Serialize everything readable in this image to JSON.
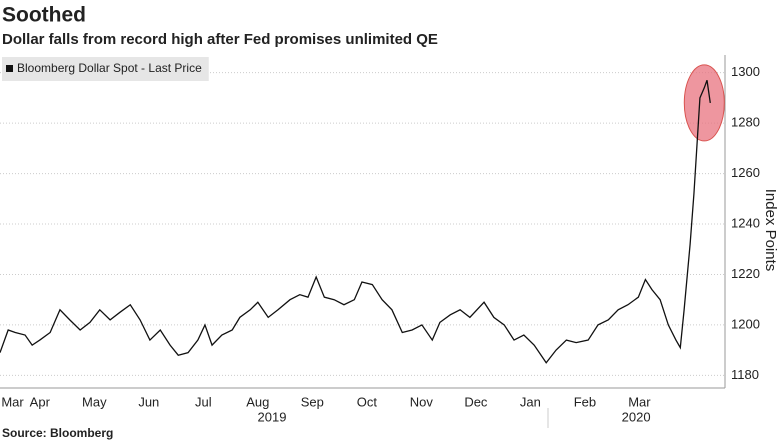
{
  "chart_data": {
    "type": "line",
    "title": "Soothed",
    "subtitle": "Dollar falls from record high after Fed promises unlimited QE",
    "y_axis_label": "Index Points",
    "source": "Source: Bloomberg",
    "legend": "top-left",
    "grid": true,
    "xlim": [
      0.77,
      14.07
    ],
    "xticks": [
      {
        "value": 1.0,
        "label": "Mar"
      },
      {
        "value": 1.5,
        "label": "Apr"
      },
      {
        "value": 2.5,
        "label": "May"
      },
      {
        "value": 3.5,
        "label": "Jun"
      },
      {
        "value": 4.5,
        "label": "Jul"
      },
      {
        "value": 5.5,
        "label": "Aug"
      },
      {
        "value": 6.5,
        "label": "Sep"
      },
      {
        "value": 7.5,
        "label": "Oct"
      },
      {
        "value": 8.5,
        "label": "Nov"
      },
      {
        "value": 9.5,
        "label": "Dec"
      },
      {
        "value": 10.5,
        "label": "Jan"
      },
      {
        "value": 11.5,
        "label": "Feb"
      },
      {
        "value": 12.5,
        "label": "Mar"
      }
    ],
    "year_labels": [
      {
        "value": 5.76,
        "label": "2019"
      },
      {
        "value": 12.44,
        "label": "2020"
      }
    ],
    "ylim": [
      1175,
      1307
    ],
    "yticks": [
      1180,
      1200,
      1220,
      1240,
      1260,
      1280,
      1300
    ],
    "highlight": {
      "x": 13.69,
      "y": 1288,
      "color": "#e8737f"
    },
    "x": [
      0.77,
      0.92,
      1.05,
      1.23,
      1.36,
      1.5,
      1.69,
      1.87,
      2.05,
      2.24,
      2.42,
      2.6,
      2.79,
      2.97,
      3.16,
      3.34,
      3.52,
      3.71,
      3.89,
      4.04,
      4.22,
      4.4,
      4.53,
      4.66,
      4.84,
      5.03,
      5.17,
      5.36,
      5.5,
      5.69,
      5.87,
      6.09,
      6.27,
      6.42,
      6.57,
      6.72,
      6.9,
      7.08,
      7.27,
      7.41,
      7.6,
      7.78,
      7.96,
      8.15,
      8.33,
      8.51,
      8.7,
      8.84,
      9.03,
      9.21,
      9.39,
      9.65,
      9.83,
      10.02,
      10.2,
      10.38,
      10.57,
      10.79,
      10.97,
      11.16,
      11.34,
      11.56,
      11.74,
      11.93,
      12.11,
      12.29,
      12.48,
      12.61,
      12.73,
      12.88,
      13.03,
      13.17,
      13.25,
      13.32,
      13.43,
      13.5,
      13.61,
      13.69,
      13.74,
      13.8
    ],
    "series": [
      {
        "name": "Bloomberg Dollar Spot - Last Price",
        "color": "#111111",
        "values": [
          1189,
          1198,
          1197,
          1196,
          1192,
          1194,
          1197,
          1206,
          1202,
          1198,
          1201,
          1206,
          1202,
          1205,
          1208,
          1202,
          1194,
          1198,
          1192,
          1188,
          1189,
          1194,
          1200,
          1192,
          1196,
          1198,
          1203,
          1206,
          1209,
          1203,
          1206,
          1210,
          1212,
          1211,
          1219,
          1211,
          1210,
          1208,
          1210,
          1217,
          1216,
          1210,
          1206,
          1197,
          1198,
          1200,
          1194,
          1201,
          1204,
          1206,
          1203,
          1209,
          1203,
          1200,
          1194,
          1196,
          1192,
          1185,
          1190,
          1194,
          1193,
          1194,
          1200,
          1202,
          1206,
          1208,
          1211,
          1218,
          1214,
          1210,
          1200,
          1194,
          1191,
          1206,
          1232,
          1252,
          1290,
          1294,
          1297,
          1288
        ]
      }
    ]
  }
}
